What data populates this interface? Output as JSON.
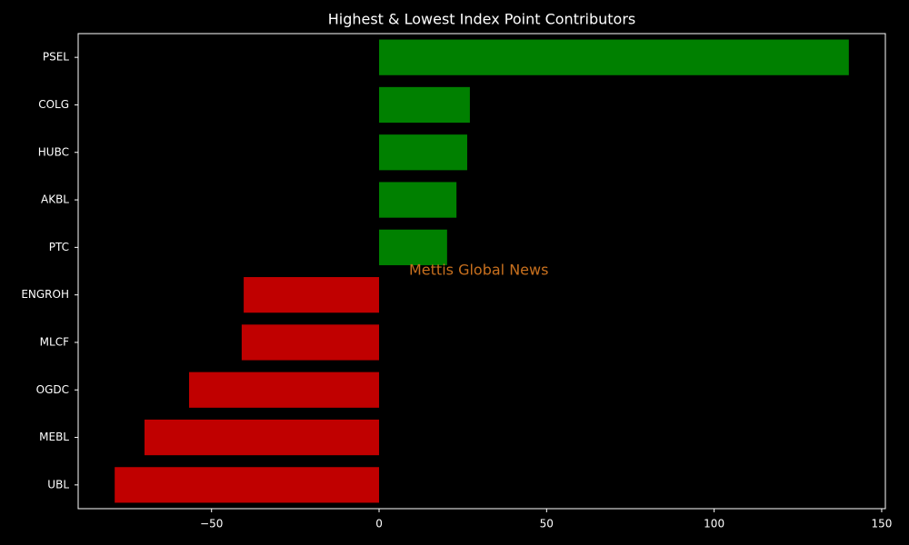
{
  "chart_data": {
    "type": "barh",
    "title": "Highest & Lowest Index Point Contributors",
    "categories": [
      "PSEL",
      "COLG",
      "HUBC",
      "AKBL",
      "PTC",
      "ENGROH",
      "MLCF",
      "OGDC",
      "MEBL",
      "UBL"
    ],
    "values": [
      140.2,
      27.1,
      26.3,
      23.1,
      20.3,
      -40.4,
      -41.0,
      -56.7,
      -70.0,
      -78.9
    ],
    "colors": [
      "#008000",
      "#008000",
      "#008000",
      "#008000",
      "#008000",
      "#c00000",
      "#c00000",
      "#c00000",
      "#c00000",
      "#c00000"
    ],
    "xlim": [
      -89.8,
      151.1
    ],
    "xticks": [
      {
        "value": -50,
        "label": "−50"
      },
      0,
      50,
      100,
      150
    ],
    "watermark": "Mettis Global News",
    "watermark_color": "#c8701e"
  }
}
